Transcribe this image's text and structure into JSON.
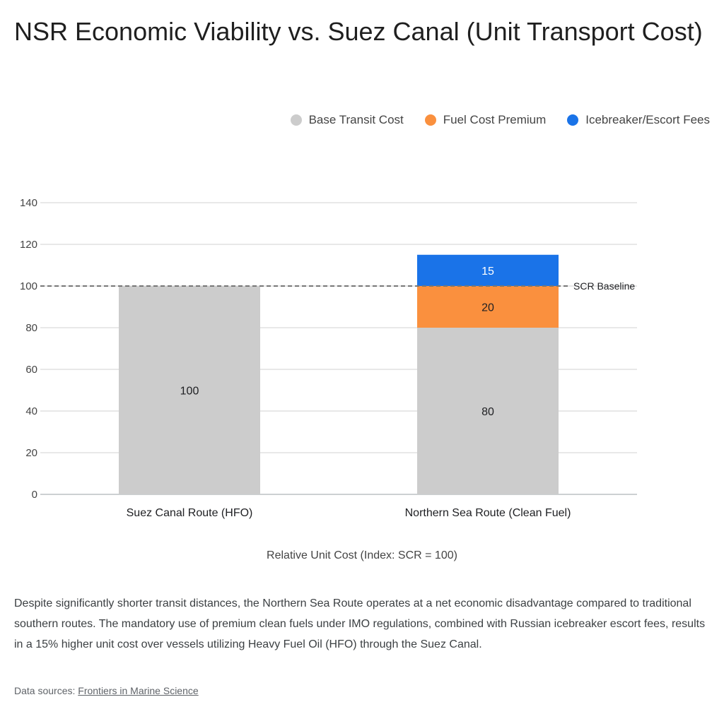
{
  "chart_data": {
    "type": "bar",
    "stacked": true,
    "title": "NSR Economic Viability vs. Suez Canal (Unit Transport Cost)",
    "xlabel": "Relative Unit Cost (Index: SCR = 100)",
    "ylabel": "",
    "ylim": [
      0,
      140
    ],
    "yticks": [
      "0",
      "20",
      "40",
      "60",
      "80",
      "100",
      "120",
      "140"
    ],
    "grid": true,
    "legend_position": "top-right",
    "categories": [
      "Suez Canal Route (HFO)",
      "Northern Sea Route (Clean Fuel)"
    ],
    "series": [
      {
        "name": "Base Transit Cost",
        "values": [
          100,
          80
        ],
        "color": "#cccccc",
        "label_color": "#202124"
      },
      {
        "name": "Fuel Cost Premium",
        "values": [
          0,
          20
        ],
        "color": "#fa903e",
        "label_color": "#202124"
      },
      {
        "name": "Icebreaker/Escort Fees",
        "values": [
          0,
          15
        ],
        "color": "#1a73e8",
        "label_color": "#ffffff"
      }
    ],
    "reference_line": {
      "value": 100,
      "label": "SCR Baseline",
      "style": "dashed"
    }
  },
  "description": "Despite significantly shorter transit distances, the Northern Sea Route operates at a net economic disadvantage compared to traditional southern routes. The mandatory use of premium clean fuels under IMO regulations, combined with Russian icebreaker escort fees, results in a 15% higher unit cost over vessels utilizing Heavy Fuel Oil (HFO) through the Suez Canal.",
  "sources": {
    "prefix": "Data sources:",
    "link_text": "Frontiers in Marine Science"
  }
}
